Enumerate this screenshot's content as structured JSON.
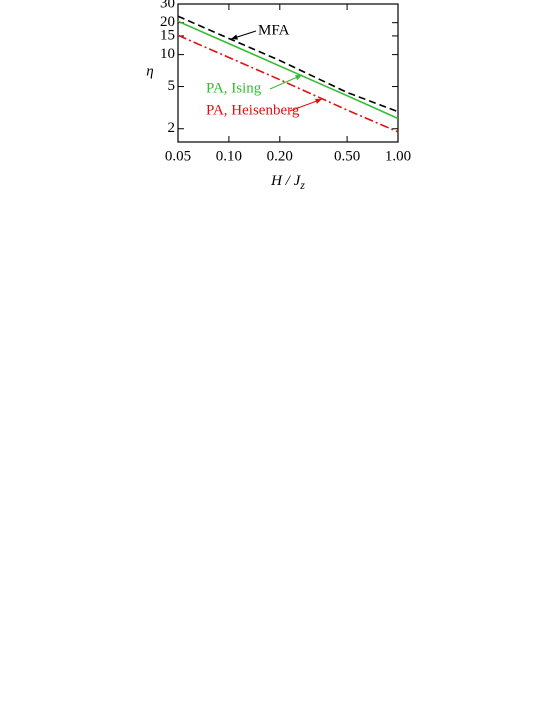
{
  "chart_data": {
    "type": "line",
    "xlabel": {
      "main": "H / J",
      "sub": "z"
    },
    "ylabel": "η",
    "xlog": true,
    "ylog": true,
    "xlim": [
      0.05,
      1.0
    ],
    "ylim": [
      1.5,
      30
    ],
    "xticks": [
      0.05,
      {
        "value": 0.1,
        "label": "0.10"
      },
      {
        "value": 0.2,
        "label": "0.20"
      },
      {
        "value": 0.5,
        "label": "0.50"
      },
      {
        "value": 1.0,
        "label": "1.00"
      }
    ],
    "yticks": [
      2,
      5,
      10,
      15,
      20,
      30
    ],
    "x": [
      0.05,
      0.1,
      0.2,
      0.5,
      1.0
    ],
    "series": [
      {
        "name": "MFA",
        "color": "#000000",
        "linestyle": "dashed",
        "values": [
          23,
          14.2,
          8.8,
          4.4,
          2.9
        ]
      },
      {
        "name": "PA, Ising",
        "color": "#33bb33",
        "linestyle": "solid",
        "values": [
          20.6,
          12.7,
          7.8,
          4.1,
          2.5
        ]
      },
      {
        "name": "PA, Heisenberg",
        "color": "#e01010",
        "linestyle": "dashdot",
        "values": [
          15.2,
          9.4,
          5.8,
          3.0,
          1.87
        ]
      }
    ]
  }
}
